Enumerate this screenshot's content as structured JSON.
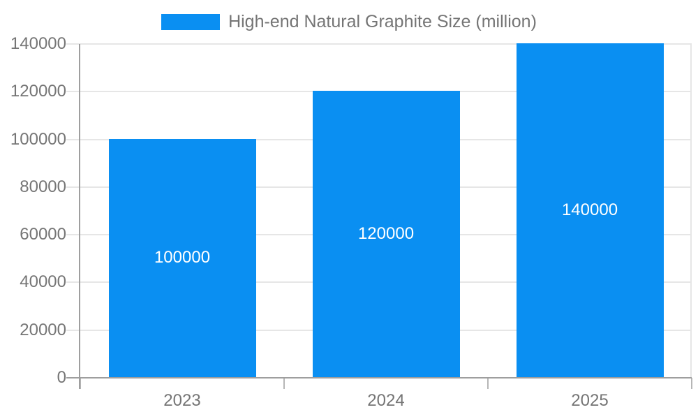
{
  "chart_data": {
    "type": "bar",
    "title": "High-end Natural Graphite Size (million)",
    "categories": [
      "2023",
      "2024",
      "2025"
    ],
    "series": [
      {
        "name": "High-end Natural Graphite Size (million)",
        "values": [
          100000,
          120000,
          140000
        ]
      }
    ],
    "data_labels": [
      "100000",
      "120000",
      "140000"
    ],
    "y_ticks": [
      0,
      20000,
      40000,
      60000,
      80000,
      100000,
      120000,
      140000
    ],
    "y_tick_labels": [
      "0",
      "20000",
      "40000",
      "60000",
      "80000",
      "100000",
      "120000",
      "140000"
    ],
    "ylim": [
      0,
      140000
    ],
    "xlabel": "",
    "ylabel": "",
    "grid": true,
    "legend_position": "top-center",
    "colors": {
      "bar": "#0A8FF2",
      "grid": "#E6E6E6",
      "axis": "#9E9E9E",
      "tick_label": "#757575",
      "legend_text": "#757575",
      "data_label": "#FFFFFF",
      "background": "#FFFFFF"
    }
  }
}
